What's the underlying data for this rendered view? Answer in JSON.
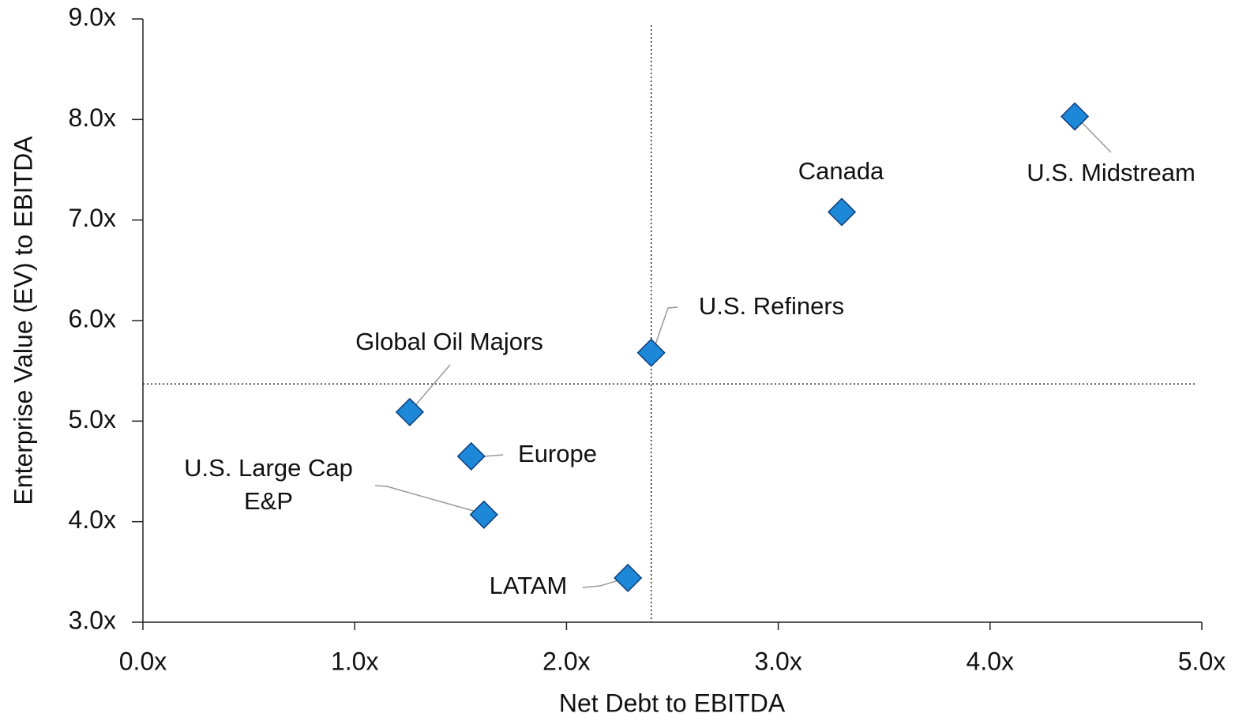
{
  "chart_data": {
    "type": "scatter",
    "xlabel": "Net Debt to EBITDA",
    "ylabel": "Enterprise Value (EV) to EBITDA",
    "labels": [
      "Global Oil Majors",
      "Europe",
      "U.S. Large Cap E&P",
      "LATAM",
      "U.S. Refiners",
      "Canada",
      "U.S. Midstream"
    ],
    "x": [
      1.26,
      1.55,
      1.61,
      2.29,
      2.4,
      3.3,
      4.4
    ],
    "values": [
      5.09,
      4.65,
      4.07,
      3.44,
      5.68,
      7.08,
      8.03
    ],
    "color": "#1e88d8",
    "reference_lines": {
      "x": 2.4,
      "y": 5.37
    },
    "xlim": [
      0,
      5
    ],
    "xticks": [
      {
        "value": 0,
        "label": "0.0x"
      },
      {
        "value": 1,
        "label": "1.0x"
      },
      {
        "value": 2,
        "label": "2.0x"
      },
      {
        "value": 3,
        "label": "3.0x"
      },
      {
        "value": 4,
        "label": "4.0x"
      },
      {
        "value": 5,
        "label": "5.0x"
      }
    ],
    "ylim": [
      3,
      9
    ],
    "yticks": [
      {
        "value": 3,
        "label": "3.0x"
      },
      {
        "value": 4,
        "label": "4.0x"
      },
      {
        "value": 5,
        "label": "5.0x"
      },
      {
        "value": 6,
        "label": "6.0x"
      },
      {
        "value": 7,
        "label": "7.0x"
      },
      {
        "value": 8,
        "label": "8.0x"
      },
      {
        "value": 9,
        "label": "9.0x"
      }
    ]
  }
}
